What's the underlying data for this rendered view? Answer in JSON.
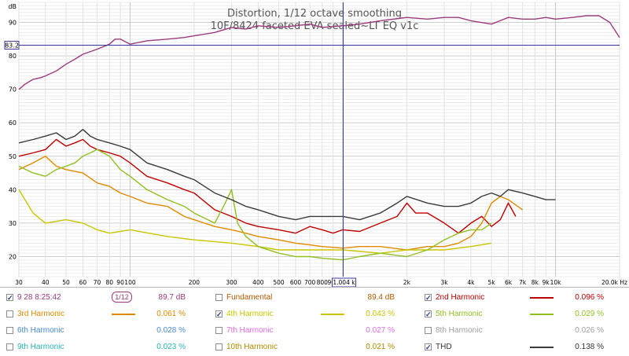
{
  "chart_data": {
    "type": "line",
    "title": "Distortion, 1/12 octave smoothing",
    "subtitle": "10F/8424 faceted EVA sealed~LT EQ v1c",
    "ylabel": "dB",
    "xlabel": "",
    "x_scale": "log",
    "xlim": [
      30,
      20000
    ],
    "ylim": [
      14,
      96
    ],
    "yticks": [
      "20",
      "30",
      "40",
      "50",
      "60",
      "70",
      "80",
      "90"
    ],
    "xtick_labels": [
      "30",
      "40",
      "50",
      "60",
      "70",
      "80",
      "90",
      "100",
      "200",
      "300",
      "400",
      "500",
      "600",
      "700",
      "800",
      "900",
      "2k",
      "3k",
      "4k",
      "5k",
      "6k",
      "7k",
      "8k",
      "9k",
      "10k",
      "20.0k Hz"
    ],
    "xtick_values": [
      30,
      40,
      50,
      60,
      70,
      80,
      90,
      100,
      200,
      300,
      400,
      500,
      600,
      700,
      800,
      900,
      2000,
      3000,
      4000,
      5000,
      6000,
      7000,
      8000,
      9000,
      10000,
      20000
    ],
    "cursor": {
      "freq": 1004,
      "freq_label": "1.004 k",
      "level": 83.2,
      "level_label": "83.2"
    },
    "grid": true,
    "series": [
      {
        "name": "9 28 8:25:42",
        "color": "#9c3b7f",
        "x": [
          30,
          32,
          35,
          38,
          40,
          45,
          50,
          55,
          60,
          70,
          80,
          85,
          90,
          100,
          120,
          150,
          180,
          200,
          250,
          300,
          350,
          400,
          500,
          600,
          700,
          800,
          1000,
          1200,
          1500,
          2000,
          2500,
          3000,
          3500,
          4000,
          5000,
          6000,
          7000,
          8000,
          9000,
          10000,
          12000,
          14000,
          16000,
          18000,
          20000
        ],
        "y": [
          70,
          71.5,
          73,
          73.5,
          74,
          75.5,
          77.5,
          79,
          80.5,
          82,
          83.5,
          85,
          85,
          83.5,
          84.5,
          85,
          85.5,
          86,
          87,
          88.5,
          88,
          89,
          88.5,
          89,
          89.5,
          88.5,
          89,
          89.5,
          90.5,
          91.5,
          91,
          91.5,
          91.5,
          90.5,
          89.5,
          91.5,
          91,
          91,
          91.5,
          91,
          91.5,
          92,
          92,
          90,
          85.5
        ]
      },
      {
        "name": "2nd Harmonic",
        "color": "#c00000",
        "x": [
          30,
          35,
          40,
          45,
          50,
          55,
          60,
          65,
          70,
          80,
          90,
          100,
          120,
          150,
          180,
          200,
          250,
          300,
          350,
          400,
          500,
          600,
          700,
          800,
          900,
          1000,
          1200,
          1500,
          1800,
          2000,
          2200,
          2500,
          3000,
          3500,
          4000,
          4500,
          5000,
          5500,
          6000,
          6500
        ],
        "y": [
          50,
          51,
          52,
          55,
          53,
          54,
          55,
          53,
          52,
          51,
          50,
          48,
          44,
          42,
          40,
          39,
          34,
          32,
          30,
          29,
          28,
          27,
          29,
          28,
          27,
          28,
          27.5,
          30,
          32,
          36,
          33,
          33,
          30,
          27,
          30,
          32,
          29,
          31,
          36,
          32
        ]
      },
      {
        "name": "3rd Harmonic",
        "color": "#e08a00",
        "x": [
          30,
          35,
          40,
          45,
          50,
          60,
          70,
          80,
          90,
          100,
          120,
          150,
          180,
          200,
          250,
          300,
          350,
          400,
          500,
          600,
          700,
          800,
          1000,
          1200,
          1500,
          2000,
          2500,
          3000,
          3500,
          4000,
          4500,
          5000,
          5500,
          6000,
          7000
        ],
        "y": [
          46,
          48,
          50,
          47,
          46,
          45,
          42,
          41,
          39,
          38,
          36,
          35,
          32,
          31,
          29,
          28,
          27,
          26,
          25,
          24,
          23.5,
          23,
          22.5,
          23,
          23,
          22,
          23,
          23,
          24,
          26,
          30,
          36,
          38,
          37,
          34
        ]
      },
      {
        "name": "4th Harmonic",
        "color": "#c9c600",
        "x": [
          30,
          35,
          40,
          50,
          60,
          70,
          80,
          100,
          150,
          200,
          300,
          400,
          500,
          700,
          1000,
          1500,
          2000,
          3000,
          4000,
          5000
        ],
        "y": [
          40,
          33,
          30,
          31,
          30,
          28,
          27,
          28,
          26,
          25,
          24,
          23,
          22,
          22,
          22,
          21,
          22,
          22,
          23,
          24
        ]
      },
      {
        "name": "5th Harmonic",
        "color": "#90c020",
        "x": [
          30,
          35,
          40,
          45,
          50,
          55,
          60,
          65,
          70,
          80,
          90,
          100,
          120,
          150,
          180,
          200,
          250,
          280,
          300,
          320,
          350,
          400,
          500,
          600,
          700,
          800,
          1000,
          1200,
          1500,
          2000,
          2500,
          3000,
          3500,
          4000,
          4500,
          5000
        ],
        "y": [
          47,
          45,
          44,
          46,
          47,
          48,
          50,
          51,
          52,
          50,
          46,
          44,
          40,
          37,
          35,
          33,
          30,
          36,
          40,
          30,
          26,
          23,
          21,
          20,
          20,
          19.5,
          19,
          20,
          21,
          20,
          22,
          25,
          27,
          28,
          28,
          30
        ]
      },
      {
        "name": "THD",
        "color": "#3a3a3a",
        "x": [
          30,
          35,
          40,
          45,
          50,
          55,
          60,
          65,
          70,
          80,
          90,
          100,
          120,
          150,
          180,
          200,
          250,
          300,
          350,
          400,
          500,
          600,
          700,
          800,
          900,
          1000,
          1200,
          1500,
          1800,
          2000,
          2500,
          3000,
          3500,
          4000,
          4500,
          5000,
          5500,
          6000,
          7000,
          8000,
          9000,
          10000
        ],
        "y": [
          54,
          55,
          56,
          57,
          55,
          56,
          58,
          56,
          55,
          54,
          53,
          52,
          48,
          46,
          44,
          43,
          39,
          37,
          35,
          34,
          32,
          31,
          32,
          32,
          32,
          32,
          31,
          33,
          36,
          38,
          36,
          35,
          35,
          36,
          38,
          39,
          38,
          40,
          39,
          38,
          37,
          37
        ]
      }
    ]
  },
  "legend": {
    "rows": [
      [
        {
          "checked": true,
          "name": "9 28 8:25:42",
          "name_color": "#9c3b7f",
          "smoothing": "1/12",
          "swatch": "",
          "value": "89.7 dB",
          "value_color": "#9c3b7f"
        },
        {
          "checked": false,
          "name": "Fundamental",
          "name_color": "#b35a00",
          "smoothing": "",
          "swatch": "",
          "value": "89.4 dB",
          "value_color": "#b35a00"
        },
        {
          "checked": true,
          "name": "2nd Harmonic",
          "name_color": "#c00000",
          "smoothing": "",
          "swatch": "#c00000",
          "value": "0.096 %",
          "value_color": "#c00000"
        }
      ],
      [
        {
          "checked": false,
          "name": "3rd Harmonic",
          "name_color": "#e08a00",
          "smoothing": "",
          "swatch": "#e08a00",
          "value": "0.061 %",
          "value_color": "#e08a00"
        },
        {
          "checked": true,
          "name": "4th Harmonic",
          "name_color": "#c9c600",
          "smoothing": "",
          "swatch": "#c9c600",
          "value": "0.043 %",
          "value_color": "#c9c600"
        },
        {
          "checked": true,
          "name": "5th Harmonic",
          "name_color": "#90c020",
          "smoothing": "",
          "swatch": "#90c020",
          "value": "0.029 %",
          "value_color": "#90c020"
        }
      ],
      [
        {
          "checked": false,
          "name": "6th Harmonic",
          "name_color": "#4a8bd6",
          "smoothing": "",
          "swatch": "",
          "value": "0.028 %",
          "value_color": "#4a8bd6"
        },
        {
          "checked": false,
          "name": "7th Harmonic",
          "name_color": "#e66be6",
          "smoothing": "",
          "swatch": "",
          "value": "0.027 %",
          "value_color": "#e66be6"
        },
        {
          "checked": false,
          "name": "8th Harmonic",
          "name_color": "#a0a0a0",
          "smoothing": "",
          "swatch": "",
          "value": "0.026 %",
          "value_color": "#a0a0a0"
        }
      ],
      [
        {
          "checked": false,
          "name": "9th Harmonic",
          "name_color": "#2bb3b3",
          "smoothing": "",
          "swatch": "",
          "value": "0.023 %",
          "value_color": "#2bb3b3"
        },
        {
          "checked": false,
          "name": "10th Harmonic",
          "name_color": "#b08a00",
          "smoothing": "",
          "swatch": "",
          "value": "0.021 %",
          "value_color": "#b08a00"
        },
        {
          "checked": true,
          "name": "THD",
          "name_color": "#333333",
          "smoothing": "",
          "swatch": "#3a3a3a",
          "value": "0.138 %",
          "value_color": "#333333"
        }
      ]
    ],
    "check_glyph": "✓"
  }
}
